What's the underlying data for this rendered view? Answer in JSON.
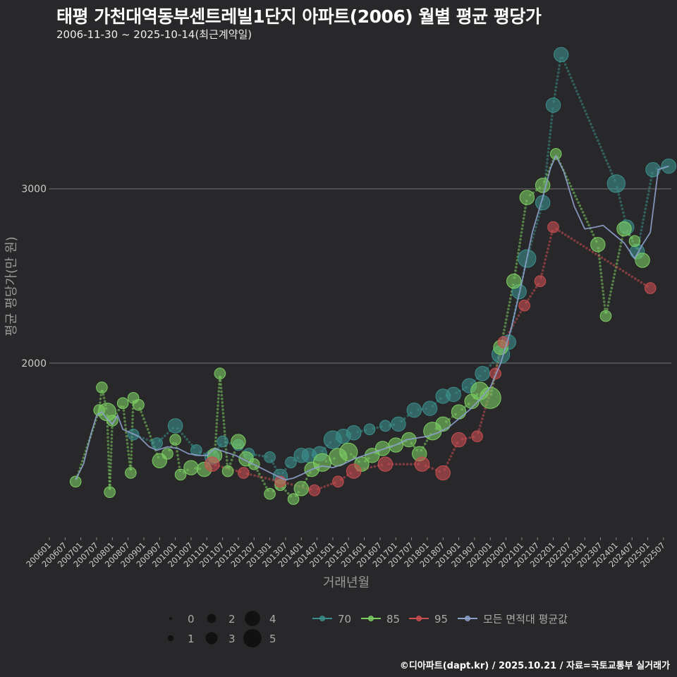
{
  "title": "태평 가천대역동부센트레빌1단지 아파트(2006) 월별 평균 평당가",
  "subtitle": "2006-11-30 ~ 2025-10-14(최근계약일)",
  "caption": "©디아파트(dapt.kr) / 2025.10.21 / 자료=국토교통부 실거래가",
  "chart_data": {
    "type": "scatter",
    "xlabel": "거래년월",
    "ylabel": "평균 평당가(만 원)",
    "ylim": [
      1000,
      3800
    ],
    "xlim": [
      "2006-01",
      "2025-10"
    ],
    "yticks": [
      2000,
      3000
    ],
    "xticks": [
      "200601",
      "200607",
      "200701",
      "200707",
      "200801",
      "200807",
      "200901",
      "200907",
      "201001",
      "201007",
      "201101",
      "201107",
      "201201",
      "201207",
      "201301",
      "201307",
      "201401",
      "201407",
      "201501",
      "201507",
      "201601",
      "201607",
      "201701",
      "201707",
      "201801",
      "201807",
      "201901",
      "201907",
      "202001",
      "202007",
      "202101",
      "202107",
      "202201",
      "202207",
      "202301",
      "202307",
      "202401",
      "202407",
      "202501",
      "202507"
    ],
    "size_legend": {
      "title": "",
      "values": [
        0,
        1,
        2,
        3,
        4,
        5
      ]
    },
    "series": [
      {
        "name": "70",
        "color": "#3a8f8c",
        "points": [
          [
            "2008-09",
            1590,
            2
          ],
          [
            "2009-06",
            1540,
            2
          ],
          [
            "2010-01",
            1640,
            3
          ],
          [
            "2010-09",
            1500,
            2
          ],
          [
            "2011-03",
            1460,
            3
          ],
          [
            "2011-07",
            1550,
            2
          ],
          [
            "2012-01",
            1530,
            2
          ],
          [
            "2012-05",
            1480,
            2
          ],
          [
            "2013-01",
            1460,
            2
          ],
          [
            "2013-05",
            1350,
            3
          ],
          [
            "2013-09",
            1430,
            2
          ],
          [
            "2014-01",
            1470,
            3
          ],
          [
            "2014-04",
            1470,
            3
          ],
          [
            "2014-08",
            1480,
            3
          ],
          [
            "2015-01",
            1560,
            4
          ],
          [
            "2015-05",
            1580,
            3
          ],
          [
            "2015-09",
            1600,
            3
          ],
          [
            "2016-03",
            1620,
            2
          ],
          [
            "2016-09",
            1640,
            2
          ],
          [
            "2017-02",
            1650,
            3
          ],
          [
            "2017-08",
            1730,
            3
          ],
          [
            "2018-02",
            1740,
            3
          ],
          [
            "2018-07",
            1810,
            3
          ],
          [
            "2018-11",
            1820,
            3
          ],
          [
            "2019-05",
            1870,
            3
          ],
          [
            "2019-10",
            1940,
            3
          ],
          [
            "2020-05",
            2050,
            4
          ],
          [
            "2020-08",
            2120,
            3
          ],
          [
            "2020-12",
            2410,
            3
          ],
          [
            "2021-03",
            2600,
            4
          ],
          [
            "2021-09",
            2920,
            3
          ],
          [
            "2022-01",
            3480,
            3
          ],
          [
            "2022-04",
            3770,
            3
          ],
          [
            "2024-01",
            3030,
            4
          ],
          [
            "2024-05",
            2780,
            3
          ],
          [
            "2024-09",
            2640,
            3
          ],
          [
            "2025-03",
            3110,
            3
          ],
          [
            "2025-09",
            3130,
            3
          ]
        ]
      },
      {
        "name": "85",
        "color": "#7ccd62",
        "points": [
          [
            "2006-11",
            1320,
            2
          ],
          [
            "2007-08",
            1730,
            2
          ],
          [
            "2007-09",
            1860,
            2
          ],
          [
            "2007-11",
            1720,
            4
          ],
          [
            "2007-12",
            1260,
            2
          ],
          [
            "2008-01",
            1670,
            2
          ],
          [
            "2008-05",
            1770,
            2
          ],
          [
            "2008-08",
            1370,
            2
          ],
          [
            "2008-09",
            1800,
            2
          ],
          [
            "2008-11",
            1760,
            2
          ],
          [
            "2009-07",
            1440,
            3
          ],
          [
            "2009-10",
            1480,
            2
          ],
          [
            "2010-01",
            1560,
            2
          ],
          [
            "2010-03",
            1360,
            2
          ],
          [
            "2010-07",
            1400,
            3
          ],
          [
            "2010-12",
            1390,
            3
          ],
          [
            "2011-04",
            1470,
            3
          ],
          [
            "2011-06",
            1940,
            2
          ],
          [
            "2011-09",
            1380,
            2
          ],
          [
            "2012-01",
            1550,
            3
          ],
          [
            "2012-04",
            1450,
            3
          ],
          [
            "2012-07",
            1420,
            2
          ],
          [
            "2013-01",
            1250,
            2
          ],
          [
            "2013-05",
            1300,
            2
          ],
          [
            "2013-10",
            1220,
            2
          ],
          [
            "2014-01",
            1280,
            3
          ],
          [
            "2014-05",
            1390,
            3
          ],
          [
            "2014-09",
            1430,
            4
          ],
          [
            "2015-03",
            1460,
            4
          ],
          [
            "2015-07",
            1490,
            4
          ],
          [
            "2015-12",
            1420,
            3
          ],
          [
            "2016-04",
            1470,
            3
          ],
          [
            "2016-08",
            1510,
            3
          ],
          [
            "2017-01",
            1530,
            3
          ],
          [
            "2017-06",
            1560,
            3
          ],
          [
            "2017-10",
            1480,
            3
          ],
          [
            "2018-03",
            1610,
            4
          ],
          [
            "2018-07",
            1650,
            3
          ],
          [
            "2019-01",
            1720,
            3
          ],
          [
            "2019-06",
            1780,
            3
          ],
          [
            "2019-09",
            1840,
            4
          ],
          [
            "2020-01",
            1800,
            5
          ],
          [
            "2020-05",
            2090,
            3
          ],
          [
            "2020-10",
            2470,
            3
          ],
          [
            "2021-03",
            2950,
            3
          ],
          [
            "2021-09",
            3020,
            3
          ],
          [
            "2022-02",
            3200,
            2
          ],
          [
            "2023-06",
            2680,
            3
          ],
          [
            "2023-09",
            2270,
            2
          ],
          [
            "2024-04",
            2770,
            3
          ],
          [
            "2024-08",
            2700,
            2
          ],
          [
            "2024-11",
            2590,
            3
          ]
        ]
      },
      {
        "name": "95",
        "color": "#c94e52",
        "points": [
          [
            "2011-03",
            1420,
            3
          ],
          [
            "2012-03",
            1370,
            2
          ],
          [
            "2013-05",
            1320,
            2
          ],
          [
            "2014-06",
            1270,
            2
          ],
          [
            "2015-03",
            1320,
            2
          ],
          [
            "2015-09",
            1380,
            3
          ],
          [
            "2016-09",
            1420,
            3
          ],
          [
            "2017-11",
            1420,
            3
          ],
          [
            "2018-07",
            1370,
            3
          ],
          [
            "2019-01",
            1560,
            3
          ],
          [
            "2019-08",
            1580,
            2
          ],
          [
            "2020-03",
            1940,
            2
          ],
          [
            "2020-06",
            2120,
            2
          ],
          [
            "2021-02",
            2330,
            2
          ],
          [
            "2021-08",
            2470,
            2
          ],
          [
            "2022-01",
            2780,
            2
          ],
          [
            "2025-02",
            2430,
            2
          ]
        ]
      },
      {
        "name": "모든 면적대 평균값",
        "color": "#8da0cb",
        "points": [
          [
            "2006-11",
            1330
          ],
          [
            "2007-02",
            1420
          ],
          [
            "2007-05",
            1600
          ],
          [
            "2007-07",
            1700
          ],
          [
            "2007-09",
            1720
          ],
          [
            "2007-11",
            1680
          ],
          [
            "2008-01",
            1650
          ],
          [
            "2008-03",
            1700
          ],
          [
            "2008-05",
            1620
          ],
          [
            "2008-08",
            1600
          ],
          [
            "2008-11",
            1580
          ],
          [
            "2009-03",
            1520
          ],
          [
            "2009-06",
            1500
          ],
          [
            "2009-10",
            1520
          ],
          [
            "2010-02",
            1510
          ],
          [
            "2010-06",
            1480
          ],
          [
            "2010-10",
            1470
          ],
          [
            "2011-01",
            1470
          ],
          [
            "2011-04",
            1510
          ],
          [
            "2011-08",
            1490
          ],
          [
            "2011-12",
            1470
          ],
          [
            "2012-04",
            1440
          ],
          [
            "2012-08",
            1410
          ],
          [
            "2012-12",
            1380
          ],
          [
            "2013-04",
            1350
          ],
          [
            "2013-07",
            1330
          ],
          [
            "2013-10",
            1340
          ],
          [
            "2014-01",
            1360
          ],
          [
            "2014-05",
            1390
          ],
          [
            "2014-09",
            1410
          ],
          [
            "2015-01",
            1400
          ],
          [
            "2015-05",
            1420
          ],
          [
            "2015-09",
            1450
          ],
          [
            "2016-01",
            1470
          ],
          [
            "2016-05",
            1490
          ],
          [
            "2016-09",
            1510
          ],
          [
            "2017-01",
            1530
          ],
          [
            "2017-05",
            1560
          ],
          [
            "2017-09",
            1570
          ],
          [
            "2018-01",
            1580
          ],
          [
            "2018-05",
            1600
          ],
          [
            "2018-09",
            1630
          ],
          [
            "2019-01",
            1680
          ],
          [
            "2019-05",
            1730
          ],
          [
            "2019-09",
            1790
          ],
          [
            "2020-01",
            1860
          ],
          [
            "2020-05",
            2000
          ],
          [
            "2020-09",
            2200
          ],
          [
            "2021-01",
            2460
          ],
          [
            "2021-05",
            2750
          ],
          [
            "2021-09",
            2950
          ],
          [
            "2021-12",
            3120
          ],
          [
            "2022-02",
            3190
          ],
          [
            "2022-05",
            3100
          ],
          [
            "2022-09",
            2900
          ],
          [
            "2023-01",
            2770
          ],
          [
            "2023-05",
            2780
          ],
          [
            "2023-08",
            2790
          ],
          [
            "2023-12",
            2740
          ],
          [
            "2024-04",
            2690
          ],
          [
            "2024-08",
            2600
          ],
          [
            "2024-11",
            2680
          ],
          [
            "2025-02",
            2750
          ],
          [
            "2025-05",
            3110
          ],
          [
            "2025-09",
            3130
          ]
        ]
      }
    ]
  }
}
